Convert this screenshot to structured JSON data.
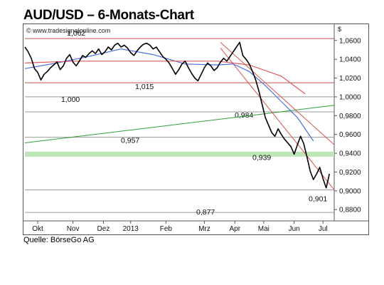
{
  "header": {
    "title": "AUD/USD – 6-Monats-Chart"
  },
  "footer": {
    "source": "Quelle: BörseGo AG"
  },
  "chart_data": {
    "type": "line",
    "title": "AUD/USD – 6-Monats-Chart",
    "watermark": "© www.tradesignalonline.com",
    "currency_symbol": "$",
    "ylim": [
      0.868,
      1.075
    ],
    "yticks": [
      0.88,
      0.9,
      0.92,
      0.94,
      0.96,
      0.98,
      1.0,
      1.02,
      1.04,
      1.06
    ],
    "ytick_labels": [
      "0,8800",
      "0,9000",
      "0,9200",
      "0,9400",
      "0,9600",
      "0,9800",
      "1,0000",
      "1,0200",
      "1,0400",
      "1,0600"
    ],
    "x_range": [
      0,
      193
    ],
    "x_ticks": [
      {
        "label": "Okt",
        "x": 8
      },
      {
        "label": "Nov",
        "x": 30
      },
      {
        "label": "Dez",
        "x": 49
      },
      {
        "label": "2013",
        "x": 66
      },
      {
        "label": "Feb",
        "x": 88
      },
      {
        "label": "Mrz",
        "x": 112
      },
      {
        "label": "Apr",
        "x": 131
      },
      {
        "label": "Mai",
        "x": 149
      },
      {
        "label": "Jun",
        "x": 168
      },
      {
        "label": "Jul",
        "x": 186
      }
    ],
    "horizontal_levels": [
      {
        "value": 1.062,
        "label": "1,062",
        "color": "#c0504d"
      },
      {
        "value": 1.015,
        "label": "1,015",
        "color": "#c0504d"
      },
      {
        "value": 1.0,
        "label": "1,000",
        "color": "#999999"
      },
      {
        "value": 0.984,
        "label": "0,984",
        "color": "#999999"
      },
      {
        "value": 0.957,
        "label": "0,957",
        "color": "#999999"
      },
      {
        "value": 0.939,
        "label": "0,939",
        "color": "#bde5b6"
      },
      {
        "value": 0.901,
        "label": "0,901",
        "color": "#999999"
      },
      {
        "value": 0.877,
        "label": "0,877",
        "color": "#999999"
      }
    ],
    "trendlines": [
      {
        "name": "green-trendline",
        "color": "#2e9e3a",
        "from": [
          0,
          0.951
        ],
        "to": [
          193,
          0.991
        ]
      },
      {
        "name": "red-trendline-upper",
        "color": "#d9534f",
        "from": [
          122,
          1.058
        ],
        "to": [
          193,
          0.949
        ]
      },
      {
        "name": "red-trendline-lower",
        "color": "#d9534f",
        "from": [
          122,
          1.052
        ],
        "to": [
          193,
          0.901
        ]
      }
    ],
    "moving_averages": [
      {
        "name": "ma-short",
        "color": "#4a6fe3",
        "x": [
          0,
          20,
          40,
          60,
          80,
          100,
          120,
          130,
          140,
          150,
          160,
          170,
          180
        ],
        "y": [
          1.03,
          1.036,
          1.043,
          1.051,
          1.045,
          1.035,
          1.034,
          1.035,
          1.027,
          1.012,
          0.995,
          0.978,
          0.953
        ]
      },
      {
        "name": "ma-long",
        "color": "#e05a5a",
        "x": [
          0,
          30,
          60,
          90,
          120,
          140,
          160,
          175
        ],
        "y": [
          1.036,
          1.038,
          1.038,
          1.038,
          1.038,
          1.034,
          1.022,
          1.003
        ]
      }
    ],
    "series": [
      {
        "color": "#000000",
        "x": [
          0,
          2,
          4,
          6,
          8,
          10,
          12,
          14,
          16,
          18,
          20,
          22,
          24,
          26,
          28,
          30,
          32,
          34,
          36,
          38,
          40,
          42,
          44,
          46,
          48,
          50,
          52,
          54,
          56,
          58,
          60,
          62,
          64,
          66,
          68,
          70,
          72,
          74,
          76,
          78,
          80,
          82,
          84,
          86,
          88,
          90,
          92,
          94,
          96,
          98,
          100,
          102,
          104,
          106,
          108,
          110,
          112,
          114,
          116,
          118,
          120,
          122,
          124,
          126,
          128,
          130,
          132,
          134,
          136,
          138,
          140,
          142,
          144,
          146,
          148,
          150,
          152,
          154,
          156,
          158,
          160,
          162,
          164,
          166,
          168,
          170,
          172,
          174,
          176,
          178,
          180,
          182,
          184,
          186,
          188,
          190
        ],
        "y": [
          1.053,
          1.048,
          1.041,
          1.03,
          1.026,
          1.018,
          1.024,
          1.027,
          1.031,
          1.034,
          1.037,
          1.029,
          1.033,
          1.041,
          1.045,
          1.037,
          1.033,
          1.038,
          1.044,
          1.042,
          1.046,
          1.049,
          1.046,
          1.051,
          1.045,
          1.048,
          1.053,
          1.05,
          1.055,
          1.057,
          1.053,
          1.055,
          1.052,
          1.047,
          1.044,
          1.049,
          1.053,
          1.056,
          1.057,
          1.055,
          1.051,
          1.053,
          1.048,
          1.043,
          1.04,
          1.036,
          1.03,
          1.024,
          1.029,
          1.035,
          1.038,
          1.031,
          1.025,
          1.02,
          1.017,
          1.024,
          1.031,
          1.036,
          1.033,
          1.028,
          1.031,
          1.037,
          1.041,
          1.038,
          1.043,
          1.048,
          1.053,
          1.058,
          1.044,
          1.04,
          1.035,
          1.027,
          1.018,
          1.006,
          0.992,
          0.978,
          0.97,
          0.962,
          0.958,
          0.966,
          0.96,
          0.955,
          0.951,
          0.947,
          0.939,
          0.949,
          0.958,
          0.95,
          0.936,
          0.921,
          0.912,
          0.918,
          0.925,
          0.913,
          0.903,
          0.918
        ]
      }
    ]
  }
}
